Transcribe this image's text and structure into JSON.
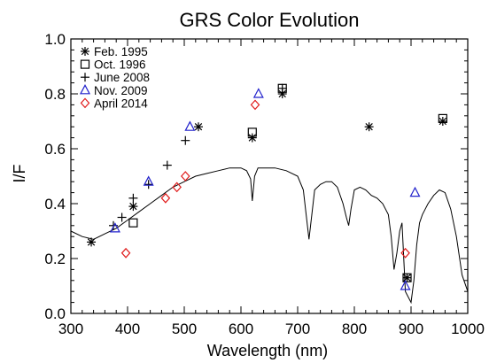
{
  "chart_data": {
    "type": "scatter",
    "title": "GRS Color Evolution",
    "xlabel": "Wavelength (nm)",
    "ylabel": "I/F",
    "xlim": [
      300,
      1000
    ],
    "ylim": [
      0.0,
      1.0
    ],
    "xticks": [
      "300",
      "400",
      "500",
      "600",
      "700",
      "800",
      "900",
      "1000"
    ],
    "yticks": [
      "0.0",
      "0.2",
      "0.4",
      "0.6",
      "0.8",
      "1.0"
    ],
    "grid": false,
    "legend_position": "top-left",
    "series": [
      {
        "name": "Feb. 1995",
        "marker": "asterisk",
        "color": "#000000",
        "points": [
          [
            336,
            0.26
          ],
          [
            410,
            0.39
          ],
          [
            525,
            0.68
          ],
          [
            620,
            0.64
          ],
          [
            673,
            0.8
          ],
          [
            826,
            0.68
          ],
          [
            893,
            0.13
          ],
          [
            956,
            0.7
          ]
        ]
      },
      {
        "name": "Oct. 1996",
        "marker": "square",
        "color": "#000000",
        "points": [
          [
            410,
            0.33
          ],
          [
            620,
            0.66
          ],
          [
            673,
            0.82
          ],
          [
            893,
            0.13
          ],
          [
            956,
            0.71
          ]
        ]
      },
      {
        "name": "June 2008",
        "marker": "plus",
        "color": "#000000",
        "points": [
          [
            375,
            0.32
          ],
          [
            390,
            0.35
          ],
          [
            410,
            0.42
          ],
          [
            437,
            0.47
          ],
          [
            470,
            0.54
          ],
          [
            502,
            0.63
          ],
          [
            673,
            0.82
          ]
        ]
      },
      {
        "name": "Nov. 2009",
        "marker": "triangle",
        "color": "#2222cc",
        "points": [
          [
            378,
            0.31
          ],
          [
            437,
            0.48
          ],
          [
            510,
            0.68
          ],
          [
            631,
            0.8
          ],
          [
            890,
            0.1
          ],
          [
            907,
            0.44
          ]
        ]
      },
      {
        "name": "April 2014",
        "marker": "diamond",
        "color": "#e01b1b",
        "points": [
          [
            397,
            0.22
          ],
          [
            467,
            0.42
          ],
          [
            487,
            0.46
          ],
          [
            502,
            0.5
          ],
          [
            625,
            0.76
          ],
          [
            890,
            0.22
          ]
        ]
      }
    ],
    "spectrum": {
      "name": "",
      "color": "#000000",
      "x": [
        300,
        320,
        340,
        360,
        380,
        400,
        420,
        440,
        460,
        480,
        500,
        520,
        540,
        560,
        580,
        600,
        610,
        617,
        620,
        624,
        630,
        640,
        660,
        680,
        700,
        710,
        715,
        720,
        725,
        730,
        740,
        750,
        760,
        770,
        780,
        786,
        790,
        794,
        800,
        810,
        820,
        830,
        840,
        850,
        860,
        865,
        870,
        875,
        880,
        884,
        890,
        900,
        905,
        910,
        915,
        920,
        925,
        930,
        940,
        950,
        960,
        970,
        980,
        990,
        1000
      ],
      "y": [
        0.3,
        0.28,
        0.27,
        0.29,
        0.31,
        0.34,
        0.37,
        0.4,
        0.43,
        0.46,
        0.48,
        0.5,
        0.51,
        0.52,
        0.53,
        0.53,
        0.52,
        0.49,
        0.41,
        0.5,
        0.53,
        0.53,
        0.53,
        0.52,
        0.5,
        0.45,
        0.36,
        0.27,
        0.36,
        0.45,
        0.47,
        0.48,
        0.48,
        0.46,
        0.4,
        0.35,
        0.32,
        0.38,
        0.45,
        0.46,
        0.45,
        0.43,
        0.42,
        0.4,
        0.36,
        0.28,
        0.16,
        0.22,
        0.3,
        0.33,
        0.08,
        0.04,
        0.12,
        0.25,
        0.33,
        0.36,
        0.38,
        0.4,
        0.43,
        0.45,
        0.44,
        0.38,
        0.28,
        0.14,
        0.08
      ]
    }
  }
}
